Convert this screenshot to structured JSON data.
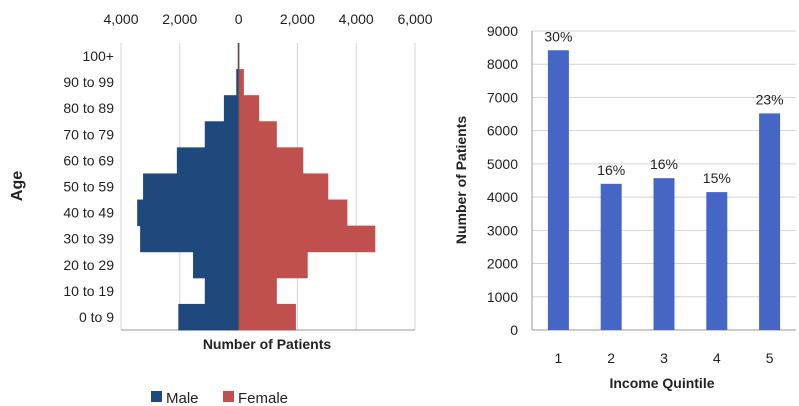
{
  "chart_data": [
    {
      "type": "bar",
      "orientation": "horizontal-pyramid",
      "title": "",
      "xlabel": "Number of Patients",
      "ylabel": "Age",
      "categories": [
        "0 to 9",
        "10 to 19",
        "20 to 29",
        "30 to 39",
        "40 to 49",
        "50 to 59",
        "60 to 69",
        "70 to 79",
        "80 to 89",
        "90 to 99",
        "100+"
      ],
      "x_ticks": [
        "4,000",
        "2,000",
        "0",
        "2,000",
        "4,000",
        "6,000"
      ],
      "xlim": [
        -4000,
        6000
      ],
      "series": [
        {
          "name": "Male",
          "color": "#1f497d",
          "values": [
            2050,
            1150,
            1550,
            3350,
            3450,
            3250,
            2100,
            1150,
            500,
            80,
            30
          ]
        },
        {
          "name": "Female",
          "color": "#c0504d",
          "values": [
            1950,
            1300,
            2350,
            4650,
            3700,
            3050,
            2200,
            1300,
            700,
            180,
            30
          ]
        }
      ],
      "grid": true,
      "legend": "bottom"
    },
    {
      "type": "bar",
      "title": "",
      "xlabel": "Income Quintile",
      "ylabel": "Number of Patients",
      "categories": [
        "1",
        "2",
        "3",
        "4",
        "5"
      ],
      "values": [
        8420,
        4400,
        4570,
        4150,
        6520
      ],
      "data_labels": [
        "30%",
        "16%",
        "16%",
        "15%",
        "23%"
      ],
      "y_ticks": [
        "0",
        "1000",
        "2000",
        "3000",
        "4000",
        "5000",
        "6000",
        "7000",
        "8000",
        "9000"
      ],
      "ylim": [
        0,
        9000
      ],
      "color": "#4566c4",
      "grid": true
    }
  ]
}
